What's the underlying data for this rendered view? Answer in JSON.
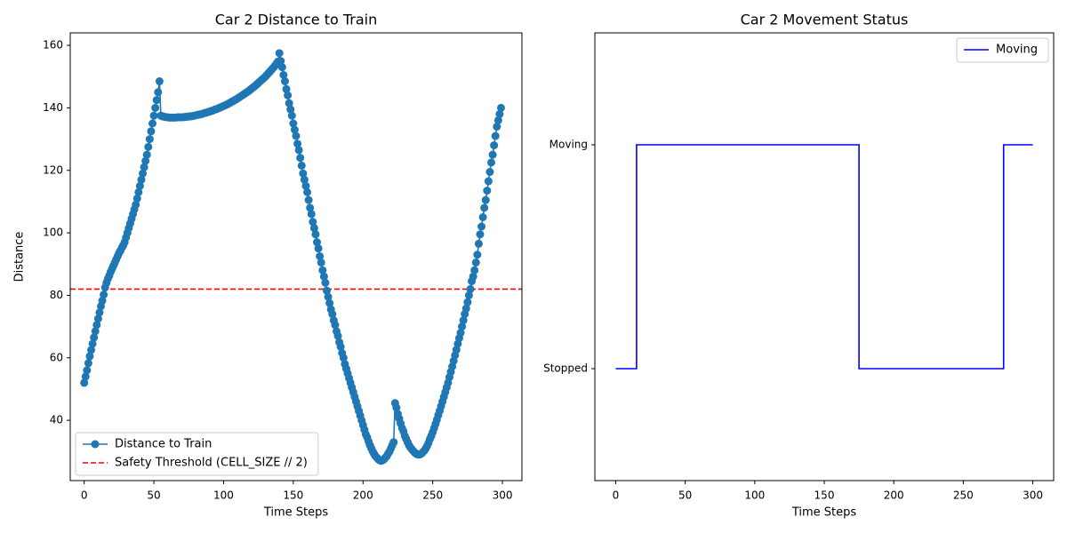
{
  "chart_data": [
    {
      "type": "line",
      "title": "Car 2 Distance to Train",
      "x_label": "Time Steps",
      "y_label": "Distance",
      "x": [
        0,
        1,
        2,
        3,
        4,
        5,
        6,
        7,
        8,
        9,
        10,
        11,
        12,
        13,
        14,
        15,
        16,
        17,
        18,
        19,
        20,
        21,
        22,
        23,
        24,
        25,
        26,
        27,
        28,
        29,
        30,
        31,
        32,
        33,
        34,
        35,
        36,
        37,
        38,
        39,
        40,
        41,
        42,
        43,
        44,
        45,
        46,
        47,
        48,
        49,
        50,
        51,
        52,
        53,
        54,
        55,
        56,
        57,
        58,
        59,
        60,
        61,
        62,
        63,
        64,
        65,
        66,
        67,
        68,
        69,
        70,
        71,
        72,
        73,
        74,
        75,
        76,
        77,
        78,
        79,
        80,
        81,
        82,
        83,
        84,
        85,
        86,
        87,
        88,
        89,
        90,
        91,
        92,
        93,
        94,
        95,
        96,
        97,
        98,
        99,
        100,
        101,
        102,
        103,
        104,
        105,
        106,
        107,
        108,
        109,
        110,
        111,
        112,
        113,
        114,
        115,
        116,
        117,
        118,
        119,
        120,
        121,
        122,
        123,
        124,
        125,
        126,
        127,
        128,
        129,
        130,
        131,
        132,
        133,
        134,
        135,
        136,
        137,
        138,
        139,
        140,
        141,
        142,
        143,
        144,
        145,
        146,
        147,
        148,
        149,
        150,
        151,
        152,
        153,
        154,
        155,
        156,
        157,
        158,
        159,
        160,
        161,
        162,
        163,
        164,
        165,
        166,
        167,
        168,
        169,
        170,
        171,
        172,
        173,
        174,
        175,
        176,
        177,
        178,
        179,
        180,
        181,
        182,
        183,
        184,
        185,
        186,
        187,
        188,
        189,
        190,
        191,
        192,
        193,
        194,
        195,
        196,
        197,
        198,
        199,
        200,
        201,
        202,
        203,
        204,
        205,
        206,
        207,
        208,
        209,
        210,
        211,
        212,
        213,
        214,
        215,
        216,
        217,
        218,
        219,
        220,
        221,
        222,
        223,
        224,
        225,
        226,
        227,
        228,
        229,
        230,
        231,
        232,
        233,
        234,
        235,
        236,
        237,
        238,
        239,
        240,
        241,
        242,
        243,
        244,
        245,
        246,
        247,
        248,
        249,
        250,
        251,
        252,
        253,
        254,
        255,
        256,
        257,
        258,
        259,
        260,
        261,
        262,
        263,
        264,
        265,
        266,
        267,
        268,
        269,
        270,
        271,
        272,
        273,
        274,
        275,
        276,
        277,
        278,
        279,
        280,
        281,
        282,
        283,
        284,
        285,
        286,
        287,
        288,
        289,
        290,
        291,
        292,
        293,
        294,
        295,
        296,
        297,
        298,
        299
      ],
      "series": [
        {
          "name": "Distance to Train",
          "color": "#1f77b4",
          "marker": true,
          "values": [
            52,
            54,
            56,
            58.3,
            60.5,
            62.5,
            64.5,
            66.5,
            68.5,
            70.5,
            72.5,
            74.5,
            76.5,
            78.3,
            80.2,
            82.5,
            84,
            85.3,
            86.3,
            87.5,
            88.5,
            89.5,
            90.5,
            91.5,
            92.5,
            93.5,
            94.3,
            95.2,
            96,
            97,
            98.5,
            100,
            101.5,
            103,
            104.5,
            106,
            107.5,
            109,
            111,
            113,
            115,
            117,
            119,
            121,
            123,
            125,
            127.5,
            130,
            132.5,
            135,
            137.5,
            140,
            142.5,
            145,
            148.5,
            137.5,
            137.3,
            137.2,
            137.1,
            137,
            137,
            136.9,
            136.9,
            136.9,
            136.9,
            136.9,
            136.9,
            137,
            137,
            137,
            137,
            137,
            137.1,
            137.1,
            137.2,
            137.2,
            137.3,
            137.3,
            137.4,
            137.5,
            137.6,
            137.7,
            137.8,
            137.9,
            138,
            138.1,
            138.3,
            138.4,
            138.5,
            138.7,
            138.8,
            139,
            139.1,
            139.3,
            139.5,
            139.6,
            139.8,
            140,
            140.2,
            140.4,
            140.6,
            140.8,
            141,
            141.2,
            141.5,
            141.7,
            142,
            142.2,
            142.5,
            142.7,
            143,
            143.3,
            143.6,
            143.9,
            144.2,
            144.5,
            144.8,
            145.1,
            145.4,
            145.8,
            146.1,
            146.5,
            146.8,
            147.2,
            147.6,
            148,
            148.4,
            148.8,
            149.2,
            149.6,
            150,
            150.5,
            151,
            151.5,
            152,
            152.5,
            153,
            153.6,
            154.2,
            154.8,
            157.5,
            155,
            153,
            150.5,
            148.5,
            146,
            144,
            141.5,
            139.5,
            137.5,
            135,
            133,
            131,
            128.5,
            126.5,
            124,
            121.5,
            119,
            117,
            115,
            113,
            110.5,
            108,
            106,
            103.5,
            101.5,
            99.5,
            97,
            95,
            92.5,
            90.5,
            88,
            86,
            84,
            81.5,
            79.5,
            77.5,
            75.5,
            74,
            72,
            70.5,
            68.5,
            67,
            65,
            63.5,
            61.5,
            60,
            58,
            56.5,
            55,
            53.5,
            52,
            50.5,
            49,
            47.5,
            46,
            44.5,
            43,
            41.5,
            40,
            38.5,
            37,
            35.5,
            34.5,
            33.2,
            32,
            31,
            30,
            29.2,
            28.5,
            28,
            27.5,
            27.2,
            27,
            27.2,
            27.5,
            28,
            28.5,
            29.3,
            30,
            31,
            32,
            33,
            45.5,
            44,
            42,
            40.5,
            39,
            37.5,
            36.5,
            35,
            34,
            33,
            32,
            31.3,
            30.7,
            30.2,
            29.7,
            29.3,
            29.1,
            29,
            29.1,
            29.4,
            29.8,
            30.3,
            31,
            31.8,
            32.8,
            34,
            35,
            36.2,
            37.5,
            38.8,
            40.2,
            41.6,
            43,
            44.5,
            46,
            47.5,
            49,
            50.5,
            52,
            53.8,
            55.5,
            57.2,
            59,
            60.8,
            62.6,
            64.5,
            66.3,
            68,
            70,
            72,
            74,
            75.8,
            77.8,
            80,
            82,
            84.5,
            86,
            88,
            90.5,
            93,
            96.5,
            99.5,
            102,
            105,
            108,
            110.5,
            113.5,
            116.5,
            119.5,
            122.5,
            125,
            128,
            131,
            134,
            136,
            138,
            140
          ]
        }
      ],
      "hlines": [
        {
          "name": "Safety Threshold (CELL_SIZE // 2)",
          "color": "#ff0000",
          "y": 82,
          "dashed": true
        }
      ],
      "xlim": [
        -10,
        314
      ],
      "ylim": [
        20.7,
        164
      ],
      "xticks": [
        0,
        50,
        100,
        150,
        200,
        250,
        300
      ],
      "yticks": [
        40,
        60,
        80,
        100,
        120,
        140,
        160
      ],
      "legend": "lower left"
    },
    {
      "type": "step",
      "title": "Car 2 Movement Status",
      "x_label": "Time Steps",
      "x": [
        0,
        15,
        175,
        279,
        300
      ],
      "series": [
        {
          "name": "Moving",
          "color": "#0000ff",
          "values": [
            0,
            1,
            0,
            1,
            1
          ]
        }
      ],
      "xlim": [
        -15,
        315
      ],
      "ylim": [
        -0.5,
        1.5
      ],
      "xticks": [
        0,
        50,
        100,
        150,
        200,
        250,
        300
      ],
      "yticks": [
        {
          "value": 0,
          "label": "Stopped"
        },
        {
          "value": 1,
          "label": "Moving"
        }
      ],
      "legend": "upper right"
    }
  ]
}
